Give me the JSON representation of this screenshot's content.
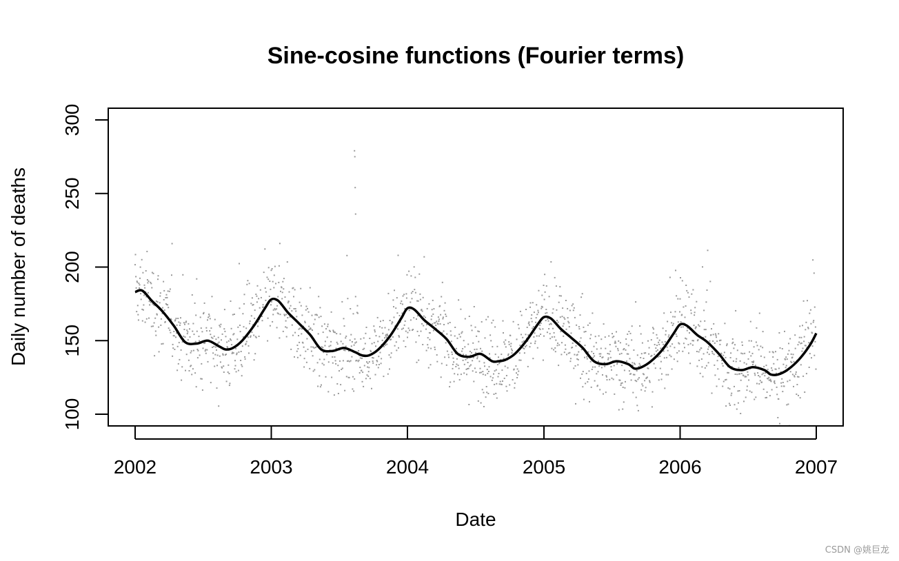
{
  "chart_data": {
    "type": "scatter",
    "title": "Sine-cosine functions (Fourier terms)",
    "xlabel": "Date",
    "ylabel": "Daily number of deaths",
    "xlim": [
      "2002-01-01",
      "2007-01-01"
    ],
    "ylim": [
      100,
      300
    ],
    "x_ticks": [
      "2002",
      "2003",
      "2004",
      "2005",
      "2006",
      "2007"
    ],
    "y_ticks": [
      100,
      150,
      200,
      250,
      300
    ],
    "grid": false,
    "legend": "none",
    "colors": {
      "points": "#999999",
      "fit": "#000000",
      "axes": "#000000"
    },
    "series": [
      {
        "type": "scatter",
        "name": "",
        "values": "daily observations, 2002-01-01 to 2006-12-31 (approx. 1826 points, spread roughly 100–230 with outliers up to ~280 in Aug 2003)"
      },
      {
        "type": "line",
        "name": "",
        "x": [
          "2002-01-01",
          "2002-01-20",
          "2002-02-15",
          "2002-03-15",
          "2002-04-15",
          "2002-05-15",
          "2002-06-15",
          "2002-07-15",
          "2002-08-15",
          "2002-09-01",
          "2002-09-20",
          "2002-10-15",
          "2002-11-15",
          "2002-12-15",
          "2003-01-01",
          "2003-01-20",
          "2003-02-15",
          "2003-03-15",
          "2003-04-15",
          "2003-05-15",
          "2003-06-15",
          "2003-07-15",
          "2003-08-15",
          "2003-09-01",
          "2003-09-20",
          "2003-10-15",
          "2003-11-15",
          "2003-12-15",
          "2004-01-01",
          "2004-01-20",
          "2004-02-15",
          "2004-03-15",
          "2004-04-15",
          "2004-05-15",
          "2004-06-15",
          "2004-07-15",
          "2004-08-15",
          "2004-09-01",
          "2004-09-20",
          "2004-10-15",
          "2004-11-15",
          "2004-12-15",
          "2005-01-01",
          "2005-01-20",
          "2005-02-15",
          "2005-03-15",
          "2005-04-15",
          "2005-05-15",
          "2005-06-15",
          "2005-07-15",
          "2005-08-15",
          "2005-09-01",
          "2005-09-20",
          "2005-10-15",
          "2005-11-15",
          "2005-12-15",
          "2006-01-01",
          "2006-01-20",
          "2006-02-15",
          "2006-03-15",
          "2006-04-15",
          "2006-05-15",
          "2006-06-15",
          "2006-07-15",
          "2006-08-15",
          "2006-09-01",
          "2006-09-20",
          "2006-10-15",
          "2006-11-15",
          "2006-12-15",
          "2007-01-01"
        ],
        "values": [
          183,
          184,
          177,
          170,
          160,
          149,
          148,
          150,
          146,
          144,
          145,
          150,
          160,
          172,
          178,
          177,
          169,
          162,
          154,
          144,
          143,
          145,
          142,
          140,
          140,
          144,
          153,
          165,
          172,
          171,
          164,
          158,
          151,
          141,
          139,
          141,
          136,
          136,
          137,
          141,
          150,
          161,
          166,
          165,
          158,
          152,
          145,
          136,
          134,
          136,
          134,
          131,
          132,
          136,
          144,
          155,
          161,
          160,
          154,
          149,
          141,
          132,
          130,
          132,
          130,
          127,
          127,
          130,
          137,
          147,
          155
        ]
      }
    ]
  },
  "watermark": "CSDN @姚巨龙"
}
